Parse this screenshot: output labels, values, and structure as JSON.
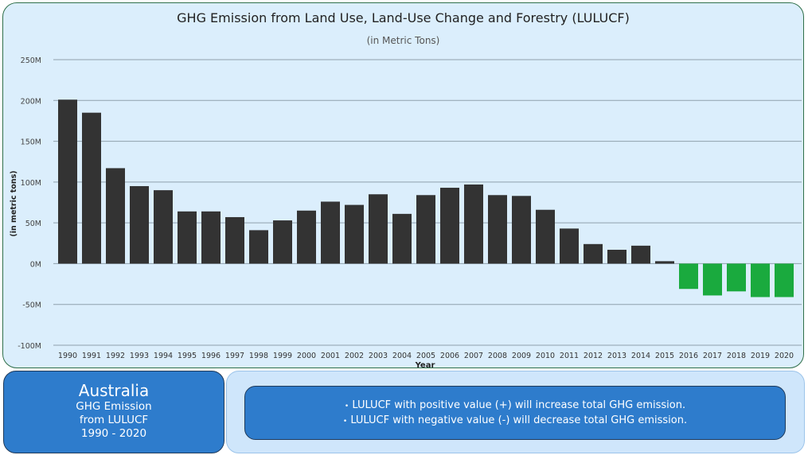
{
  "chart_data": {
    "type": "bar",
    "title": "GHG Emission from Land Use, Land-Use Change and Forestry (LULUCF)",
    "subtitle": "(in Metric Tons)",
    "xlabel": "Year",
    "ylabel": "(in metric tons)",
    "ylim": [
      -100000000,
      250000000
    ],
    "yticks": [
      -100000000,
      -50000000,
      0,
      50000000,
      100000000,
      150000000,
      200000000,
      250000000
    ],
    "ytick_labels": [
      "-100M",
      "-50M",
      "0M",
      "50M",
      "100M",
      "150M",
      "200M",
      "250M"
    ],
    "grid": true,
    "positive_color": "#333333",
    "negative_color": "#1aaa3e",
    "categories": [
      "1990",
      "1991",
      "1992",
      "1993",
      "1994",
      "1995",
      "1996",
      "1997",
      "1998",
      "1999",
      "2000",
      "2001",
      "2002",
      "2003",
      "2004",
      "2005",
      "2006",
      "2007",
      "2008",
      "2009",
      "2010",
      "2011",
      "2012",
      "2013",
      "2014",
      "2015",
      "2016",
      "2017",
      "2018",
      "2019",
      "2020"
    ],
    "values": [
      201000000,
      185000000,
      117000000,
      95000000,
      90000000,
      64000000,
      64000000,
      57000000,
      41000000,
      53000000,
      65000000,
      76000000,
      72000000,
      85000000,
      61000000,
      84000000,
      93000000,
      97000000,
      84000000,
      83000000,
      66000000,
      43000000,
      24000000,
      17000000,
      22000000,
      3000000,
      -31000000,
      -39000000,
      -34000000,
      -41000000,
      -41000000
    ]
  },
  "summary_card": {
    "country": "Australia",
    "line1": "GHG Emission",
    "line2": "from LULUCF",
    "line3": "1990 - 2020"
  },
  "notes": {
    "bullet_icon": "dot-icon",
    "positive": "LULUCF with positive value (+) will increase total GHG emission.",
    "negative": "LULUCF with negative value (-) will decrease total GHG emission."
  }
}
